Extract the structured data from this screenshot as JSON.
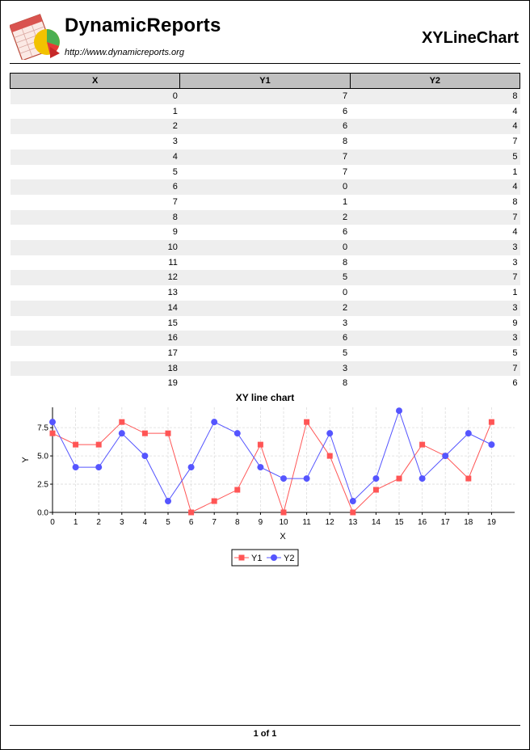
{
  "header": {
    "brand": "DynamicReports",
    "url": "http://www.dynamicreports.org",
    "report_title": "XYLineChart",
    "logo_badge": "calc"
  },
  "table": {
    "columns": [
      "X",
      "Y1",
      "Y2"
    ],
    "rows": [
      [
        "0",
        "7",
        "8"
      ],
      [
        "1",
        "6",
        "4"
      ],
      [
        "2",
        "6",
        "4"
      ],
      [
        "3",
        "8",
        "7"
      ],
      [
        "4",
        "7",
        "5"
      ],
      [
        "5",
        "7",
        "1"
      ],
      [
        "6",
        "0",
        "4"
      ],
      [
        "7",
        "1",
        "8"
      ],
      [
        "8",
        "2",
        "7"
      ],
      [
        "9",
        "6",
        "4"
      ],
      [
        "10",
        "0",
        "3"
      ],
      [
        "11",
        "8",
        "3"
      ],
      [
        "12",
        "5",
        "7"
      ],
      [
        "13",
        "0",
        "1"
      ],
      [
        "14",
        "2",
        "3"
      ],
      [
        "15",
        "3",
        "9"
      ],
      [
        "16",
        "6",
        "3"
      ],
      [
        "17",
        "5",
        "5"
      ],
      [
        "18",
        "3",
        "7"
      ],
      [
        "19",
        "8",
        "6"
      ]
    ]
  },
  "chart_data": {
    "type": "line",
    "title": "XY line chart",
    "xlabel": "X",
    "ylabel": "Y",
    "x": [
      0,
      1,
      2,
      3,
      4,
      5,
      6,
      7,
      8,
      9,
      10,
      11,
      12,
      13,
      14,
      15,
      16,
      17,
      18,
      19
    ],
    "xlim": [
      0,
      20
    ],
    "ylim": [
      0,
      9.3
    ],
    "x_ticks": [
      "0",
      "1",
      "2",
      "3",
      "4",
      "5",
      "6",
      "7",
      "8",
      "9",
      "10",
      "11",
      "12",
      "13",
      "14",
      "15",
      "16",
      "17",
      "18",
      "19"
    ],
    "y_ticks": [
      "0.0",
      "2.5",
      "5.0",
      "7.5"
    ],
    "grid": true,
    "legend_position": "bottom",
    "series": [
      {
        "name": "Y1",
        "color": "#ff5555",
        "marker": "square",
        "values": [
          7,
          6,
          6,
          8,
          7,
          7,
          0,
          1,
          2,
          6,
          0,
          8,
          5,
          0,
          2,
          3,
          6,
          5,
          3,
          8
        ]
      },
      {
        "name": "Y2",
        "color": "#5555ff",
        "marker": "circle",
        "values": [
          8,
          4,
          4,
          7,
          5,
          1,
          4,
          8,
          7,
          4,
          3,
          3,
          7,
          1,
          3,
          9,
          3,
          5,
          7,
          6
        ]
      }
    ]
  },
  "footer": {
    "page": "1 of 1"
  }
}
